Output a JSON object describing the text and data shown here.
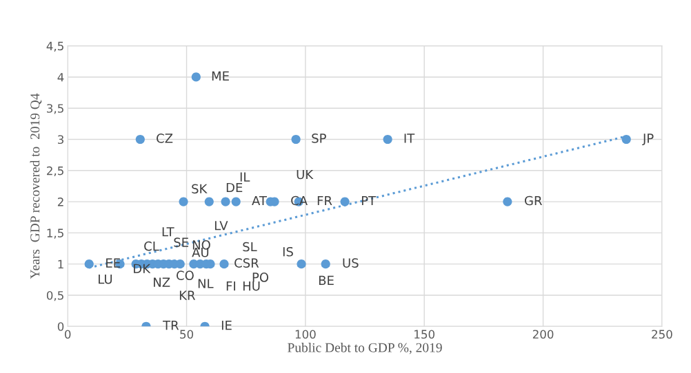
{
  "chart_data": {
    "type": "scatter",
    "xlabel": "Public Debt to GDP %, 2019",
    "ylabel": "Years  GDP recovered to  2019 Q4",
    "series": [
      {
        "color": "#5b9bd5",
        "x": [
          54,
          30.5,
          96,
          134.6,
          235,
          48.7,
          59.5,
          66.4,
          70.8,
          85.3,
          87,
          97.2,
          116.6,
          185,
          9,
          22,
          28.7,
          31,
          33.4,
          35.7,
          38,
          40.3,
          42.6,
          44.9,
          47.3,
          53,
          55.7,
          58.3,
          60,
          65.8,
          98.3,
          108.5,
          33,
          57.7
        ],
        "values": [
          4,
          3,
          3,
          3,
          3,
          2,
          2,
          2,
          2,
          2,
          2,
          2,
          2,
          2,
          1,
          1,
          1,
          1,
          1,
          1,
          1,
          1,
          1,
          1,
          1,
          1,
          1,
          1,
          1,
          1,
          1,
          1,
          0,
          0
        ]
      },
      {
        "type": "line",
        "color": "#5b9bd5",
        "line_style": "dotted",
        "marker": "none",
        "x": [
          9,
          235
        ],
        "values": [
          0.94,
          3.05
        ]
      }
    ],
    "marker": "circle",
    "xlim": [
      0,
      250
    ],
    "xticks": [
      0,
      50,
      100,
      150,
      200,
      250
    ],
    "ylim": [
      0,
      4.5
    ],
    "yticks": [
      0,
      {
        "value": 0.5,
        "label": "0,5"
      },
      1,
      {
        "value": 1.5,
        "label": "1,5"
      },
      2,
      {
        "value": 2.5,
        "label": "2,5"
      },
      3,
      {
        "value": 3.5,
        "label": "3,5"
      },
      4,
      {
        "value": 4.5,
        "label": "4,5"
      }
    ],
    "grid": true,
    "annotations": [
      {
        "text": "ME",
        "x": 54,
        "y": 4
      },
      {
        "text": "CZ",
        "x": 30.5,
        "y": 3
      },
      {
        "text": "SP",
        "x": 96,
        "y": 3
      },
      {
        "text": "IT",
        "x": 134.6,
        "y": 3
      },
      {
        "text": "JP",
        "x": 235,
        "y": 3
      },
      {
        "text": "SK",
        "x": 48.7,
        "y": 2
      },
      {
        "text": "DE",
        "x": 59.5,
        "y": 2
      },
      {
        "text": "IL",
        "x": 66.4,
        "y": 2
      },
      {
        "text": "AT",
        "x": 70.8,
        "y": 2
      },
      {
        "text": "UK",
        "x": 85.3,
        "y": 2
      },
      {
        "text": "CA",
        "x": 87,
        "y": 2
      },
      {
        "text": "FR",
        "x": 97.2,
        "y": 2
      },
      {
        "text": "PT",
        "x": 116.6,
        "y": 2
      },
      {
        "text": "GR",
        "x": 185,
        "y": 2
      },
      {
        "text": "LU",
        "x": 9,
        "y": 1
      },
      {
        "text": "EE",
        "x": 22,
        "y": 1
      },
      {
        "text": "DK",
        "x": 28.7,
        "y": 1
      },
      {
        "text": "CL",
        "x": 31,
        "y": 1
      },
      {
        "text": "NZ",
        "x": 33.4,
        "y": 1
      },
      {
        "text": "LT",
        "x": 35.7,
        "y": 1
      },
      {
        "text": "SE",
        "x": 38,
        "y": 1
      },
      {
        "text": "CO",
        "x": 40.3,
        "y": 1
      },
      {
        "text": "KR",
        "x": 42.6,
        "y": 1
      },
      {
        "text": "NO",
        "x": 44.9,
        "y": 1
      },
      {
        "text": "AU",
        "x": 47.3,
        "y": 1
      },
      {
        "text": "NL",
        "x": 53,
        "y": 1
      },
      {
        "text": "LV",
        "x": 55.7,
        "y": 1
      },
      {
        "text": "FI",
        "x": 58.3,
        "y": 1
      },
      {
        "text": "SL",
        "x": 60,
        "y": 1
      },
      {
        "text": "CSR",
        "x": 65.8,
        "y": 1
      },
      {
        "text": "HU",
        "x": 65.8,
        "y": 1
      },
      {
        "text": "PO",
        "x": 65.8,
        "y": 1
      },
      {
        "text": "IS",
        "x": 98.3,
        "y": 1
      },
      {
        "text": "US",
        "x": 108.5,
        "y": 1
      },
      {
        "text": "BE",
        "x": 108.5,
        "y": 1
      },
      {
        "text": "TR",
        "x": 33,
        "y": 0
      },
      {
        "text": "IE",
        "x": 57.7,
        "y": 0
      }
    ]
  }
}
